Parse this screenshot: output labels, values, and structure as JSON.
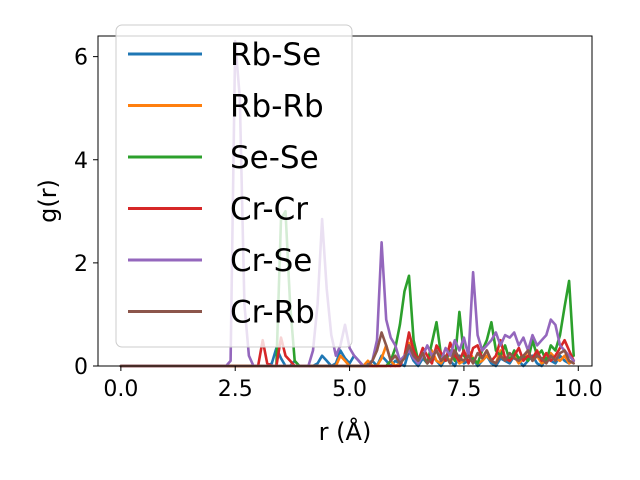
{
  "chart_data": {
    "type": "line",
    "title": "",
    "xlabel": "r (Å)",
    "ylabel": "g(r)",
    "xlim": [
      -0.5,
      10.3
    ],
    "ylim": [
      0,
      6.4
    ],
    "xticks": [
      0.0,
      2.5,
      5.0,
      7.5,
      10.0
    ],
    "xtick_labels": [
      "0.0",
      "2.5",
      "5.0",
      "7.5",
      "10.0"
    ],
    "yticks": [
      0,
      2,
      4,
      6
    ],
    "ytick_labels": [
      "0",
      "2",
      "4",
      "6"
    ],
    "legend_position": "upper-left",
    "grid": false,
    "x": [
      0.0,
      0.2,
      0.4,
      0.6,
      0.8,
      1.0,
      1.2,
      1.4,
      1.6,
      1.8,
      2.0,
      2.1,
      2.2,
      2.3,
      2.4,
      2.5,
      2.6,
      2.7,
      2.8,
      2.9,
      3.0,
      3.1,
      3.2,
      3.3,
      3.4,
      3.5,
      3.6,
      3.7,
      3.8,
      3.9,
      4.0,
      4.1,
      4.2,
      4.3,
      4.4,
      4.5,
      4.6,
      4.7,
      4.8,
      4.9,
      5.0,
      5.1,
      5.2,
      5.3,
      5.4,
      5.5,
      5.6,
      5.7,
      5.8,
      5.9,
      6.0,
      6.1,
      6.2,
      6.3,
      6.4,
      6.5,
      6.6,
      6.7,
      6.8,
      6.9,
      7.0,
      7.1,
      7.2,
      7.3,
      7.4,
      7.5,
      7.6,
      7.7,
      7.8,
      7.9,
      8.0,
      8.1,
      8.2,
      8.3,
      8.4,
      8.5,
      8.6,
      8.7,
      8.8,
      8.9,
      9.0,
      9.1,
      9.2,
      9.3,
      9.4,
      9.5,
      9.6,
      9.7,
      9.8,
      9.9
    ],
    "series": [
      {
        "name": "Rb-Se",
        "color": "#1f77b4",
        "values": [
          0,
          0,
          0,
          0,
          0,
          0,
          0,
          0,
          0,
          0,
          0,
          0,
          0,
          0,
          0,
          0,
          0,
          0,
          0,
          0,
          0,
          0,
          0,
          0.05,
          0.35,
          0.15,
          0,
          0,
          0.1,
          0,
          0,
          0,
          0,
          0.05,
          0.2,
          0.1,
          0,
          0.05,
          0.3,
          0.15,
          0.05,
          0.2,
          0.1,
          0,
          0.05,
          0.1,
          0,
          0.2,
          0.1,
          0,
          0.1,
          0.05,
          0,
          0.3,
          0.1,
          0,
          0.15,
          0.05,
          0.2,
          0.1,
          0,
          0.15,
          0.1,
          0,
          0.2,
          0.05,
          0.1,
          0.15,
          0,
          0.1,
          0.2,
          0.05,
          0,
          0.15,
          0.1,
          0.05,
          0.2,
          0.1,
          0,
          0.1,
          0.2,
          0.05,
          0,
          0.15,
          0.1,
          0.05,
          0.2,
          0.1,
          0.05,
          0.1
        ]
      },
      {
        "name": "Rb-Rb",
        "color": "#ff7f0e",
        "values": [
          0,
          0,
          0,
          0,
          0,
          0,
          0,
          0,
          0,
          0,
          0,
          0,
          0,
          0,
          0,
          0,
          0,
          0,
          0,
          0,
          0,
          0,
          0,
          0,
          0,
          0,
          0,
          0,
          0,
          0,
          0,
          0,
          0,
          0,
          0,
          0,
          0,
          0,
          0.2,
          0.1,
          0,
          0,
          0,
          0,
          0.1,
          0,
          0,
          0.15,
          0.4,
          0.1,
          0,
          0.05,
          0.2,
          0.45,
          0.15,
          0.1,
          0.2,
          0.05,
          0.3,
          0.1,
          0.05,
          0.2,
          0.1,
          0.25,
          0.05,
          0.1,
          0.3,
          0.15,
          0.05,
          0.1,
          0.2,
          0.1,
          0.05,
          0.3,
          0.15,
          0.1,
          0.2,
          0.05,
          0.15,
          0.3,
          0.1,
          0.2,
          0.05,
          0.1,
          0.25,
          0.15,
          0.1,
          0.2,
          0.05,
          0.1
        ]
      },
      {
        "name": "Se-Se",
        "color": "#2ca02c",
        "values": [
          0,
          0,
          0,
          0,
          0,
          0,
          0,
          0,
          0,
          0,
          0,
          0,
          0,
          0,
          0,
          0,
          0,
          0,
          0,
          0,
          0,
          0,
          0,
          0,
          0,
          2.85,
          3.0,
          1.2,
          0.1,
          0,
          0,
          0,
          0,
          0,
          0,
          0,
          0,
          0,
          0,
          0,
          0,
          0,
          0,
          0,
          0,
          0,
          0,
          0,
          0,
          0.1,
          0.35,
          0.8,
          1.45,
          1.75,
          0.5,
          0.1,
          0.2,
          0.05,
          0.45,
          0.85,
          0.2,
          0.1,
          0.3,
          0.1,
          1.05,
          0.2,
          0.1,
          0.15,
          0.05,
          0.3,
          0.5,
          0.85,
          0.3,
          0.2,
          0.4,
          0.1,
          0.3,
          0.15,
          0.2,
          0.1,
          0.5,
          0.2,
          0.3,
          0.1,
          0.4,
          0.3,
          0.6,
          1.15,
          1.65,
          0.2
        ]
      },
      {
        "name": "Cr-Cr",
        "color": "#d62728",
        "values": [
          0,
          0,
          0,
          0,
          0,
          0,
          0,
          0,
          0,
          0,
          0,
          0,
          0,
          0,
          0,
          0,
          0,
          0,
          0,
          0,
          0,
          0.5,
          0.05,
          0,
          0,
          0.55,
          0.2,
          0.1,
          0,
          0,
          0,
          0,
          0,
          0,
          0,
          0,
          0,
          0,
          0,
          0,
          0,
          0,
          0,
          0,
          0,
          0,
          0,
          0,
          0,
          0,
          0,
          0,
          0.2,
          0.65,
          0.3,
          0.1,
          0.35,
          0.2,
          0.05,
          0.4,
          0.25,
          0.1,
          0.45,
          0.2,
          0.1,
          0.3,
          0.05,
          0.35,
          0.4,
          0.15,
          0.3,
          0.1,
          0.2,
          0.5,
          0.15,
          0.1,
          0.2,
          0.35,
          0.1,
          0.2,
          0.15,
          0.3,
          0.1,
          0.25,
          0.1,
          0.2,
          0.35,
          0.5,
          0.3,
          0.1
        ]
      },
      {
        "name": "Cr-Se",
        "color": "#9467bd",
        "values": [
          0,
          0,
          0,
          0,
          0,
          0,
          0,
          0,
          0,
          0,
          0,
          0,
          0,
          0,
          0.1,
          6.3,
          5.2,
          1.2,
          0.2,
          0,
          0,
          0,
          0,
          0,
          0,
          0,
          0,
          0,
          0,
          0,
          0,
          0,
          0.3,
          1.2,
          2.85,
          1.5,
          0.6,
          0.2,
          0.4,
          0.8,
          0.35,
          0.2,
          0.1,
          0,
          0,
          0.1,
          0.5,
          2.4,
          0.9,
          0.55,
          0.4,
          0.1,
          0.2,
          0.3,
          0.15,
          0.05,
          0.2,
          0.4,
          0.2,
          0.3,
          0.1,
          0.35,
          0.2,
          0.5,
          0.3,
          0.55,
          0.2,
          1.82,
          0.6,
          0.3,
          0.4,
          0.5,
          0.65,
          0.4,
          0.6,
          0.55,
          0.65,
          0.4,
          0.55,
          0.3,
          0.6,
          0.4,
          0.5,
          0.6,
          0.9,
          0.8,
          0.4,
          0.3,
          0.2,
          0.1
        ]
      },
      {
        "name": "Cr-Rb",
        "color": "#8c564b",
        "values": [
          0,
          0,
          0,
          0,
          0,
          0,
          0,
          0,
          0,
          0,
          0,
          0,
          0,
          0,
          0,
          0,
          0,
          0,
          0,
          0,
          0,
          0,
          0,
          0,
          0,
          0,
          0,
          0,
          0,
          0,
          0,
          0,
          0,
          0,
          0,
          0,
          0,
          0,
          0,
          0,
          0,
          0,
          0,
          0,
          0,
          0.1,
          0.3,
          0.65,
          0.4,
          0.1,
          0.2,
          0.05,
          0.15,
          0.4,
          0.2,
          0.1,
          0.25,
          0.05,
          0.15,
          0.3,
          0.1,
          0.2,
          0.05,
          0.3,
          0.15,
          0.1,
          0.2,
          0.05,
          0.25,
          0.15,
          0.3,
          0.1,
          0.05,
          0.2,
          0.1,
          0.25,
          0.15,
          0.1,
          0.2,
          0.3,
          0.1,
          0.2,
          0.15,
          0.05,
          0.2,
          0.1,
          0.25,
          0.3,
          0.1,
          0.05
        ]
      }
    ]
  }
}
